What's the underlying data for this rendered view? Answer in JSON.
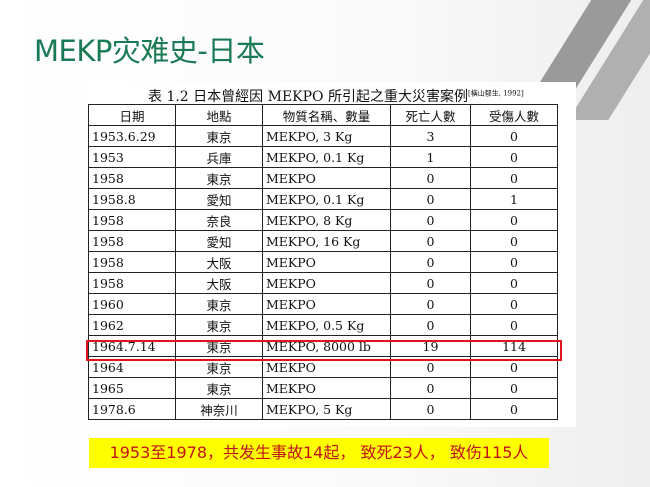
{
  "title": "MEKP灾难史-日本",
  "table": {
    "caption": "表 1.2 日本曾經因 MEKPO 所引起之重大災害案例",
    "citation": "[橫山郁生, 1992]",
    "headers": [
      "日期",
      "地點",
      "物質名稱、數量",
      "死亡人數",
      "受傷人數"
    ],
    "rows": [
      [
        "1953.6.29",
        "東京",
        "MEKPO, 3 Kg",
        "3",
        "0"
      ],
      [
        "1953",
        "兵庫",
        "MEKPO, 0.1 Kg",
        "1",
        "0"
      ],
      [
        "1958",
        "東京",
        "MEKPO",
        "0",
        "0"
      ],
      [
        "1958.8",
        "愛知",
        "MEKPO, 0.1 Kg",
        "0",
        "1"
      ],
      [
        "1958",
        "奈良",
        "MEKPO, 8 Kg",
        "0",
        "0"
      ],
      [
        "1958",
        "愛知",
        "MEKPO, 16 Kg",
        "0",
        "0"
      ],
      [
        "1958",
        "大阪",
        "MEKPO",
        "0",
        "0"
      ],
      [
        "1958",
        "大阪",
        "MEKPO",
        "0",
        "0"
      ],
      [
        "1960",
        "東京",
        "MEKPO",
        "0",
        "0"
      ],
      [
        "1962",
        "東京",
        "MEKPO, 0.5 Kg",
        "0",
        "0"
      ],
      [
        "1964.7.14",
        "東京",
        "MEKPO, 8000 lb",
        "19",
        "114"
      ],
      [
        "1964",
        "東京",
        "MEKPO",
        "0",
        "0"
      ],
      [
        "1965",
        "東京",
        "MEKPO",
        "0",
        "0"
      ],
      [
        "1978.6",
        "神奈川",
        "MEKPO, 5 Kg",
        "0",
        "0"
      ]
    ],
    "highlighted_row": 10,
    "highlight_color": "#e0141e"
  },
  "summary": "1953至1978，共发生事故14起， 致死23人， 致伤115人",
  "colors": {
    "title": "#1a7a55",
    "summary_bg": "#ffff00",
    "summary_text": "#c0131a"
  }
}
